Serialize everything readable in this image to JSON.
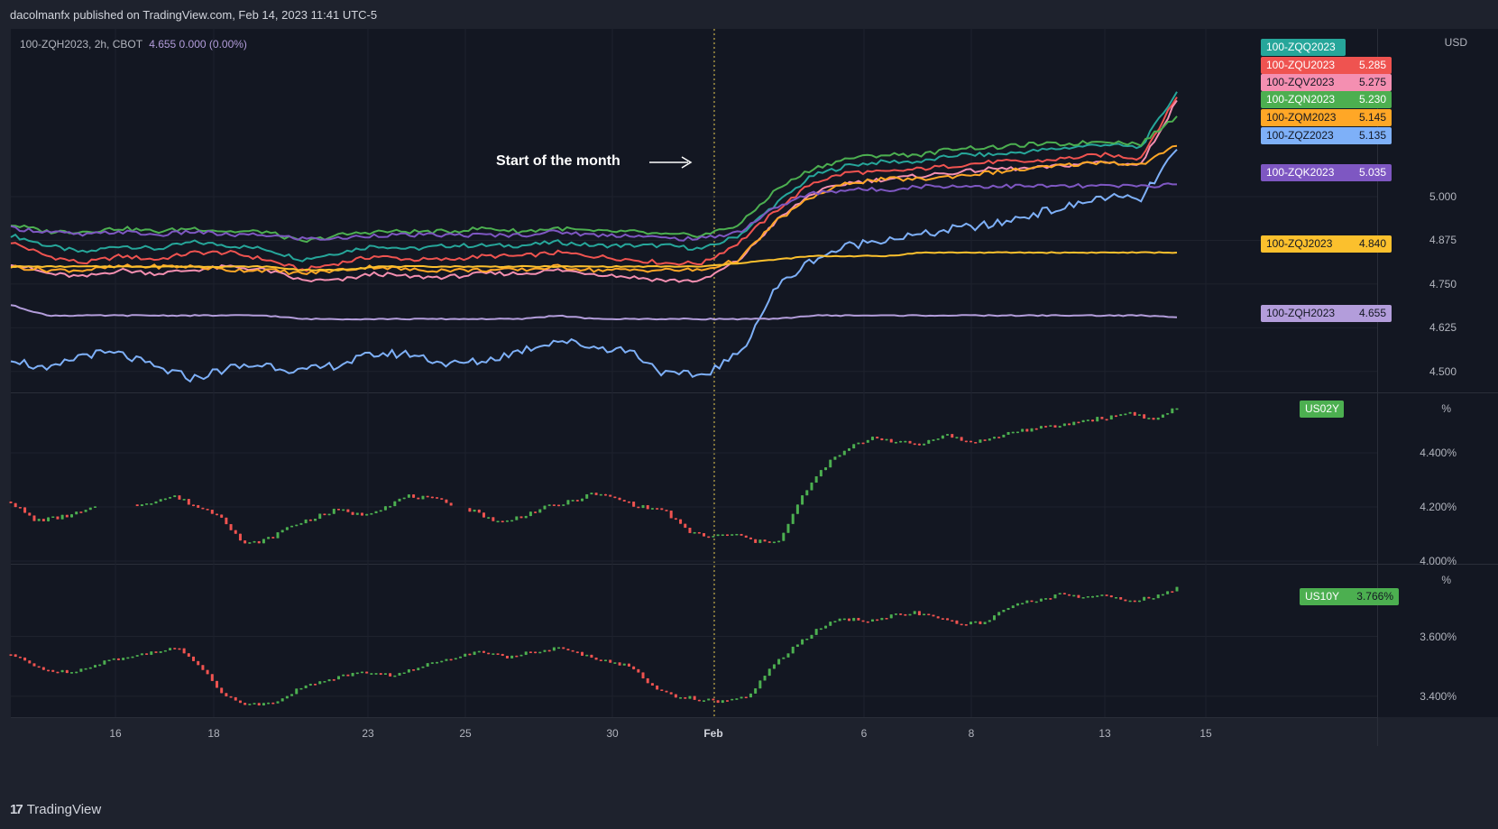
{
  "header": {
    "published": "dacolmanfx published on TradingView.com, Feb 14, 2023 11:41 UTC-5"
  },
  "footer": {
    "brand": "TradingView",
    "logo_glyph": "17"
  },
  "legend": {
    "symbol": "100-ZQH2023, 2h, CBOT",
    "value": "4.655 0.000 (0.00%)"
  },
  "annotation": "Start of the month",
  "x_axis": {
    "labels": [
      "16",
      "18",
      "23",
      "25",
      "30",
      "Feb",
      "6",
      "8",
      "13",
      "15"
    ]
  },
  "chart_data": [
    {
      "type": "line",
      "title": "100-ZQH2023, 2h, CBOT",
      "unit": "USD",
      "yticks": [
        "5.000",
        "4.875",
        "4.750",
        "4.625",
        "4.500"
      ],
      "ylim": [
        4.44,
        5.48
      ],
      "series": [
        {
          "name": "100-ZQQ2023",
          "color": "#26a69a",
          "last": "",
          "values": [
            4.89,
            4.86,
            4.84,
            4.86,
            4.85,
            4.87,
            4.86,
            4.85,
            4.82,
            4.84,
            4.86,
            4.85,
            4.86,
            4.86,
            4.86,
            4.87,
            4.86,
            4.86,
            4.86,
            4.85,
            4.89,
            4.98,
            5.06,
            5.09,
            5.1,
            5.1,
            5.12,
            5.12,
            5.13,
            5.14,
            5.15,
            5.14,
            5.3
          ]
        },
        {
          "name": "100-ZQU2023",
          "color": "#ef5350",
          "last": "5.285",
          "values": [
            4.87,
            4.83,
            4.81,
            4.83,
            4.82,
            4.84,
            4.84,
            4.82,
            4.79,
            4.81,
            4.83,
            4.82,
            4.82,
            4.83,
            4.83,
            4.84,
            4.83,
            4.82,
            4.81,
            4.81,
            4.87,
            4.96,
            5.04,
            5.07,
            5.07,
            5.08,
            5.09,
            5.1,
            5.1,
            5.11,
            5.12,
            5.11,
            5.285
          ]
        },
        {
          "name": "100-ZQV2023",
          "color": "#f48fb1",
          "last": "5.275",
          "values": [
            4.81,
            4.78,
            4.77,
            4.79,
            4.78,
            4.79,
            4.8,
            4.79,
            4.76,
            4.76,
            4.78,
            4.77,
            4.77,
            4.78,
            4.78,
            4.79,
            4.78,
            4.77,
            4.76,
            4.76,
            4.82,
            4.93,
            5.01,
            5.04,
            5.05,
            5.06,
            5.07,
            5.08,
            5.08,
            5.09,
            5.1,
            5.09,
            5.275
          ]
        },
        {
          "name": "100-ZQN2023",
          "color": "#4caf50",
          "last": "5.230",
          "values": [
            4.92,
            4.9,
            4.9,
            4.91,
            4.9,
            4.91,
            4.9,
            4.9,
            4.87,
            4.89,
            4.9,
            4.9,
            4.9,
            4.91,
            4.9,
            4.91,
            4.9,
            4.9,
            4.89,
            4.89,
            4.92,
            5.02,
            5.08,
            5.11,
            5.12,
            5.12,
            5.14,
            5.14,
            5.15,
            5.15,
            5.16,
            5.15,
            5.23
          ]
        },
        {
          "name": "100-ZQM2023",
          "color": "#ffa726",
          "last": "5.145",
          "values": [
            4.8,
            4.79,
            4.79,
            4.8,
            4.8,
            4.8,
            4.79,
            4.79,
            4.78,
            4.79,
            4.8,
            4.79,
            4.79,
            4.79,
            4.79,
            4.8,
            4.79,
            4.79,
            4.79,
            4.79,
            4.82,
            4.93,
            5.0,
            5.04,
            5.05,
            5.05,
            5.06,
            5.07,
            5.08,
            5.09,
            5.1,
            5.09,
            5.145
          ]
        },
        {
          "name": "100-ZQZ2023",
          "color": "#7eb0f8",
          "last": "5.135",
          "values": [
            4.54,
            4.5,
            4.55,
            4.55,
            4.51,
            4.48,
            4.51,
            4.52,
            4.5,
            4.52,
            4.55,
            4.55,
            4.52,
            4.53,
            4.56,
            4.59,
            4.57,
            4.56,
            4.49,
            4.49,
            4.55,
            4.74,
            4.82,
            4.86,
            4.88,
            4.89,
            4.91,
            4.92,
            4.95,
            4.97,
            5.0,
            4.99,
            5.135
          ]
        },
        {
          "name": "100-ZQK2023",
          "color": "#7e57c2",
          "last": "5.035",
          "values": [
            4.91,
            4.9,
            4.89,
            4.9,
            4.89,
            4.9,
            4.89,
            4.89,
            4.88,
            4.88,
            4.89,
            4.89,
            4.89,
            4.89,
            4.89,
            4.9,
            4.89,
            4.89,
            4.88,
            4.88,
            4.9,
            4.97,
            5.01,
            5.02,
            5.02,
            5.03,
            5.03,
            5.03,
            5.03,
            5.03,
            5.03,
            5.03,
            5.035
          ]
        },
        {
          "name": "100-ZQJ2023",
          "color": "#fbc02d",
          "last": "4.840",
          "values": [
            4.8,
            4.8,
            4.8,
            4.8,
            4.8,
            4.8,
            4.8,
            4.8,
            4.79,
            4.79,
            4.8,
            4.8,
            4.8,
            4.8,
            4.8,
            4.8,
            4.8,
            4.8,
            4.8,
            4.8,
            4.81,
            4.82,
            4.83,
            4.83,
            4.83,
            4.84,
            4.84,
            4.84,
            4.84,
            4.84,
            4.84,
            4.84,
            4.84
          ]
        },
        {
          "name": "100-ZQH2023",
          "color": "#b39ddb",
          "last": "4.655",
          "values": [
            4.69,
            4.66,
            4.66,
            4.66,
            4.66,
            4.66,
            4.66,
            4.66,
            4.65,
            4.65,
            4.65,
            4.65,
            4.65,
            4.65,
            4.65,
            4.66,
            4.65,
            4.65,
            4.65,
            4.65,
            4.65,
            4.65,
            4.66,
            4.66,
            4.66,
            4.66,
            4.66,
            4.66,
            4.66,
            4.66,
            4.66,
            4.66,
            4.655
          ]
        }
      ]
    },
    {
      "type": "candlestick",
      "title": "US02Y",
      "unit": "%",
      "yticks": [
        "4.400%",
        "4.200%",
        "4.000%"
      ],
      "ylim": [
        3.99,
        4.62
      ],
      "series": [
        {
          "name": "US02Y",
          "color_up": "#26a69a",
          "color_down": "#ef5350",
          "values": [
            4.22,
            4.15,
            4.16,
            4.18,
            4.21,
            4.2,
            4.22,
            4.24,
            4.2,
            4.17,
            4.06,
            4.08,
            4.13,
            4.16,
            4.19,
            4.17,
            4.2,
            4.24,
            4.23,
            4.21,
            4.18,
            4.14,
            4.17,
            4.2,
            4.22,
            4.25,
            4.23,
            4.2,
            4.19,
            4.11,
            4.09,
            4.1,
            4.07,
            4.08,
            4.25,
            4.36,
            4.42,
            4.46,
            4.44,
            4.43,
            4.47,
            4.44,
            4.45,
            4.48,
            4.49,
            4.5,
            4.52,
            4.53,
            4.55,
            4.52,
            4.57
          ]
        }
      ]
    },
    {
      "type": "candlestick",
      "title": "US10Y",
      "unit": "%",
      "last": "3.766%",
      "yticks": [
        "3.600%",
        "3.400%"
      ],
      "ylim": [
        3.33,
        3.84
      ],
      "series": [
        {
          "name": "US10Y",
          "color_up": "#26a69a",
          "color_down": "#ef5350",
          "values": [
            3.54,
            3.5,
            3.48,
            3.49,
            3.52,
            3.53,
            3.55,
            3.56,
            3.5,
            3.4,
            3.37,
            3.38,
            3.42,
            3.45,
            3.47,
            3.48,
            3.47,
            3.49,
            3.52,
            3.54,
            3.55,
            3.53,
            3.55,
            3.56,
            3.54,
            3.52,
            3.5,
            3.43,
            3.4,
            3.39,
            3.38,
            3.4,
            3.5,
            3.57,
            3.63,
            3.66,
            3.65,
            3.67,
            3.68,
            3.66,
            3.64,
            3.65,
            3.7,
            3.72,
            3.74,
            3.73,
            3.74,
            3.72,
            3.73,
            3.76
          ]
        }
      ]
    }
  ]
}
